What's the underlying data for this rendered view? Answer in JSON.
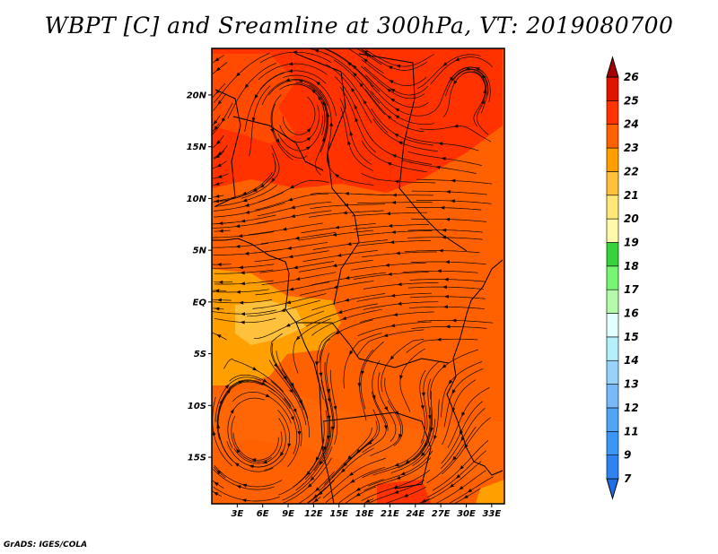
{
  "title": "WBPT [C] and Sreamline at 300hPa, VT: 2019080700",
  "credit": "GrADS: IGES/COLA",
  "map": {
    "lon_range": [
      0,
      34.5
    ],
    "lat_range": [
      -19.5,
      24.5
    ],
    "lat_ticks": [
      {
        "value": 20,
        "label": "20N"
      },
      {
        "value": 15,
        "label": "15N"
      },
      {
        "value": 10,
        "label": "10N"
      },
      {
        "value": 5,
        "label": "5N"
      },
      {
        "value": 0,
        "label": "EQ"
      },
      {
        "value": -5,
        "label": "5S"
      },
      {
        "value": -10,
        "label": "10S"
      },
      {
        "value": -15,
        "label": "15S"
      }
    ],
    "lon_ticks": [
      {
        "value": 3,
        "label": "3E"
      },
      {
        "value": 6,
        "label": "6E"
      },
      {
        "value": 9,
        "label": "9E"
      },
      {
        "value": 12,
        "label": "12E"
      },
      {
        "value": 15,
        "label": "15E"
      },
      {
        "value": 18,
        "label": "18E"
      },
      {
        "value": 21,
        "label": "21E"
      },
      {
        "value": 24,
        "label": "24E"
      },
      {
        "value": 27,
        "label": "27E"
      },
      {
        "value": 30,
        "label": "30E"
      },
      {
        "value": 33,
        "label": "33E"
      }
    ]
  },
  "colorbar": {
    "levels": [
      {
        "label": "7",
        "color": "#1e6ee6"
      },
      {
        "label": "9",
        "color": "#2f82f0"
      },
      {
        "label": "11",
        "color": "#3c96f5"
      },
      {
        "label": "12",
        "color": "#50a5f5"
      },
      {
        "label": "13",
        "color": "#78b9fa"
      },
      {
        "label": "14",
        "color": "#96d2fa"
      },
      {
        "label": "15",
        "color": "#b4f0fa"
      },
      {
        "label": "16",
        "color": "#e1ffff"
      },
      {
        "label": "17",
        "color": "#b4faaa"
      },
      {
        "label": "18",
        "color": "#78f573"
      },
      {
        "label": "19",
        "color": "#37d23c"
      },
      {
        "label": "20",
        "color": "#fffaaa"
      },
      {
        "label": "21",
        "color": "#ffe878"
      },
      {
        "label": "22",
        "color": "#ffc03c"
      },
      {
        "label": "23",
        "color": "#ffa000"
      },
      {
        "label": "24",
        "color": "#ff6000"
      },
      {
        "label": "25",
        "color": "#ff3200"
      },
      {
        "label": "26",
        "color": "#e11400"
      }
    ],
    "top_color": "#a50000"
  },
  "field_colors": {
    "c22": "#ffa000",
    "c23": "#ff6000",
    "c24": "#ff3200",
    "c21": "#ffc03c"
  }
}
